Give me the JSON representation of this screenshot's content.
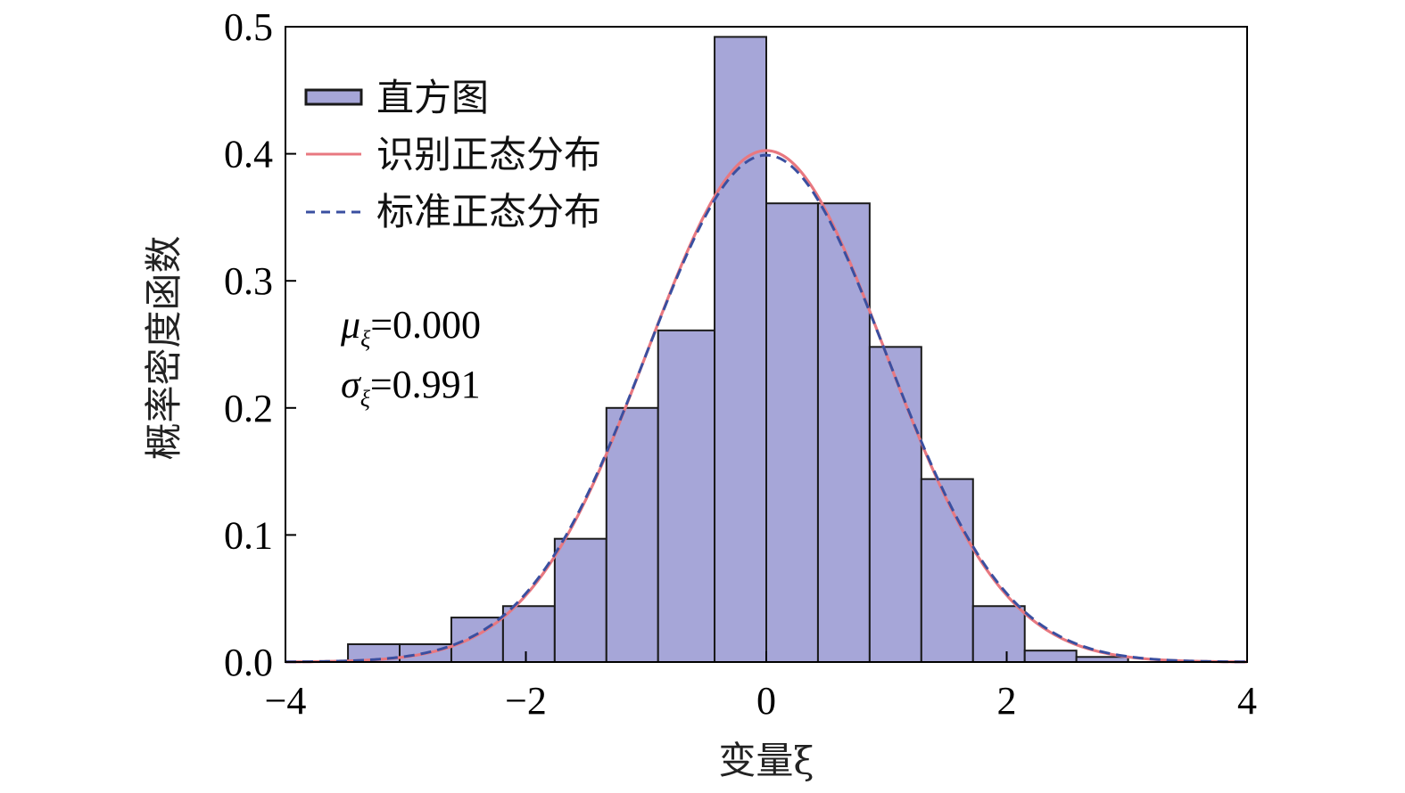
{
  "chart_data": {
    "type": "bar",
    "xlabel": "变量ξ",
    "ylabel": "概率密度函数",
    "xlim": [
      -4,
      4
    ],
    "ylim": [
      0,
      0.5
    ],
    "x_ticks": [
      -4,
      -2,
      0,
      2,
      4
    ],
    "x_tick_labels": [
      "−4",
      "−2",
      "0",
      "2",
      "4"
    ],
    "y_ticks": [
      0.0,
      0.1,
      0.2,
      0.3,
      0.4,
      0.5
    ],
    "y_tick_labels": [
      "0.0",
      "0.1",
      "0.2",
      "0.3",
      "0.4",
      "0.5"
    ],
    "grid": false,
    "legend_position": "top-left",
    "histogram": {
      "name": "直方图",
      "color": "#a6a6d8",
      "edge_color": "#1a1a1a",
      "bins": [
        {
          "x0": -3.48,
          "x1": -3.05,
          "density": 0.014
        },
        {
          "x0": -3.05,
          "x1": -2.62,
          "density": 0.014
        },
        {
          "x0": -2.62,
          "x1": -2.19,
          "density": 0.035
        },
        {
          "x0": -2.19,
          "x1": -1.76,
          "density": 0.044
        },
        {
          "x0": -1.76,
          "x1": -1.33,
          "density": 0.097
        },
        {
          "x0": -1.33,
          "x1": -0.9,
          "density": 0.2
        },
        {
          "x0": -0.9,
          "x1": -0.43,
          "density": 0.261
        },
        {
          "x0": -0.43,
          "x1": 0.0,
          "density": 0.492
        },
        {
          "x0": 0.0,
          "x1": 0.43,
          "density": 0.361
        },
        {
          "x0": 0.43,
          "x1": 0.86,
          "density": 0.361
        },
        {
          "x0": 0.86,
          "x1": 1.29,
          "density": 0.248
        },
        {
          "x0": 1.29,
          "x1": 1.72,
          "density": 0.144
        },
        {
          "x0": 1.72,
          "x1": 2.15,
          "density": 0.044
        },
        {
          "x0": 2.15,
          "x1": 2.58,
          "density": 0.009
        },
        {
          "x0": 2.58,
          "x1": 3.01,
          "density": 0.004
        }
      ]
    },
    "series": [
      {
        "name": "识别正态分布",
        "kind": "normal-pdf",
        "mu": 0.0,
        "sigma": 0.991,
        "color": "#e87880",
        "dash": "solid"
      },
      {
        "name": "标准正态分布",
        "kind": "normal-pdf",
        "mu": 0.0,
        "sigma": 1.0,
        "color": "#3a4fa0",
        "dash": "dashed"
      }
    ],
    "annotations": {
      "mu_symbol": "μ",
      "mu_subscript": "ξ",
      "mu_value": "=0.000",
      "sigma_symbol": "σ",
      "sigma_subscript": "ξ",
      "sigma_value": "=0.991"
    }
  }
}
